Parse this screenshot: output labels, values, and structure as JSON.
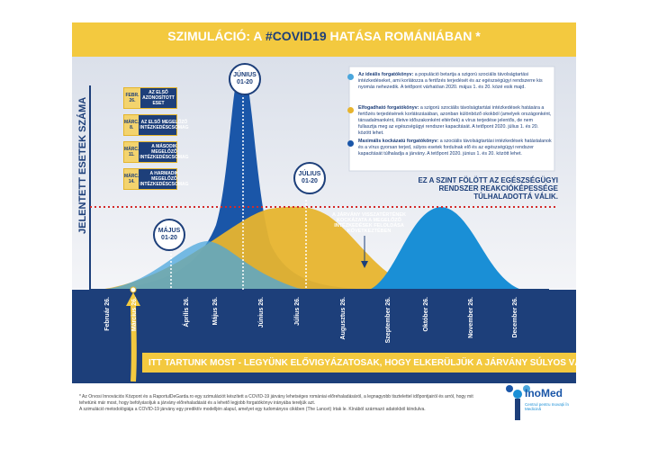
{
  "header": {
    "title_start": "SZIMULÁCIÓ: A",
    "title_highlight": "#COVID19",
    "title_end": "HATÁSA ROMÁNIÁBAN *"
  },
  "y_axis_label": "JELENTETT ESETEK SZÁMA",
  "events": [
    {
      "date": "FEBR. 26.",
      "text": "AZ ELSŐ AZONOSÍTOTT ESET"
    },
    {
      "date": "MÁRC. 8.",
      "text": "AZ ELSŐ MEGELŐZŐ INTÉZKEDÉSCSOMAG"
    },
    {
      "date": "MÁRC. 11.",
      "text": "A MÁSODIK MEGELŐZŐ INTÉZKEDÉSCSOMAG"
    },
    {
      "date": "MÁRC. 14.",
      "text": "A HARMADIK MEGELŐZŐ INTÉZKEDÉSCSOMAG"
    }
  ],
  "peaks": [
    {
      "month": "JÚNIUS",
      "days": "01-20"
    },
    {
      "month": "JÚLIUS",
      "days": "01-20"
    },
    {
      "month": "MÁJUS",
      "days": "01-20"
    }
  ],
  "legend": [
    {
      "name": "Az ideális forgatókönyv:",
      "text": "a populáció betartja a szigorú szociális távolságtartási intézkedéseket, ami korlátozza a fertőzés terjedését és az egészségügyi rendszerre kis nyomás nehezedik. A tetőpont várhatóan 2020. május 1. és 20. közé esik majd."
    },
    {
      "name": "Elfogadható forgatókönyv:",
      "text": "a szigorú szociális távolságtartási intézkedések hatására a fertőzés terjedésének korlátozásában, azonban különböző okokból (amelyek országonként, társadalmanként, illetve időszakonként eltérőek) a vírus terjedése jelentős, de nem fullasztja meg az egészségügyi rendszer kapacitását. A tetőpont 2020. július 1. és 20. között lehet."
    },
    {
      "name": "Maximális kockázatú forgatókönyv:",
      "text": "a szociális távolságtartási intézkedések hatástalanok és a vírus gyorsan terjed, súlyos esetek fordulnak elő és az egészségügyi rendszer kapacitását túlhaladja a járvány. A tetőpont 2020. június 1. és 20. között lehet."
    }
  ],
  "threshold": "EZ A SZINT FÖLÖTT AZ EGÉSZSÉGÜGYI RENDSZER REAKCIÓKÉPESSÉGE TÚLHALADOTTÁ VÁLIK.",
  "second_wave": "A JÁRVÁNY VISSZATÉRTÉNEK KOCKÁZATA A MEGELŐZŐ INTÉZKEDÉSEK FELOLDÁSA KÖVETKEZTÉBEN",
  "months": [
    "Február 26.",
    "Március 26.",
    "Április 26.",
    "Május 26.",
    "Június 26.",
    "Július 26.",
    "Augusztus 26.",
    "Szeptember 26.",
    "Október 26.",
    "November 26.",
    "December 26."
  ],
  "banner": "ITT TARTUNK MOST - LEGYÜNK ELŐVIGYÁZATOSAK, HOGY ELKERÜLJÜK A JÁRVÁNY SÚLYOS VÁLTOZÁSÁT",
  "footnotes": [
    "* Az Orvosi Innovációs Központ és a RaportulDeGarda.ro egy szimulációt készített a COVID-19 járvány lehetséges romániai előrehaladásáról, a legnagyobb tisztelettel időpontjairól és arról, hogy mit tehetünk már most, hogy befolyásoljuk a járvány előrehaladását és a lehető legjobb forgatókönyv irányába tereljük azt.",
    "A szimuláció metodológiája a COVID-19 járvány egy prediktív modelljén alapul, amelyet egy tudományos cikkben (The Lancet) írtak le. Kínából származó adatokból kiindulva."
  ],
  "logo": {
    "name": "InoMed",
    "tagline": "Centrul pentru Inovații în Medicină"
  }
}
